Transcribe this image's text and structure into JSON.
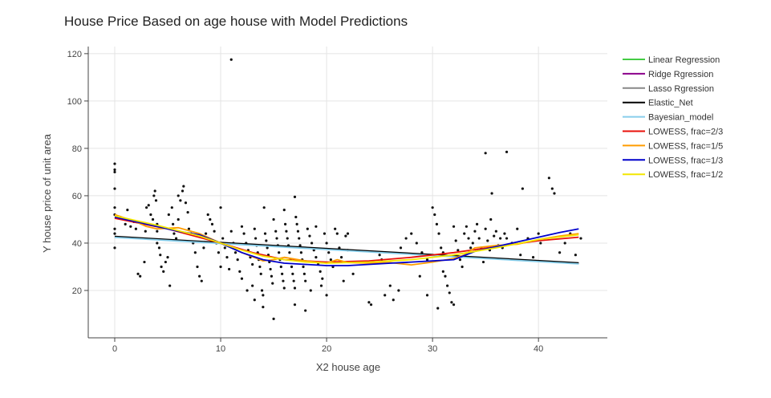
{
  "chart_data": {
    "type": "scatter",
    "title": "House Price Based on age house with Model Predictions",
    "xlabel": "X2 house age",
    "ylabel": "Y house price of unit area",
    "xlim": [
      -2.5,
      46.5
    ],
    "ylim": [
      0,
      123
    ],
    "xticks": [
      0,
      10,
      20,
      30,
      40
    ],
    "yticks": [
      20,
      40,
      60,
      80,
      100,
      120
    ],
    "grid": true,
    "legend_position": "right",
    "points": [
      [
        0,
        73.5
      ],
      [
        0,
        71
      ],
      [
        0,
        70
      ],
      [
        0,
        63
      ],
      [
        0,
        55
      ],
      [
        0,
        52
      ],
      [
        0,
        46
      ],
      [
        0,
        44
      ],
      [
        0,
        38
      ],
      [
        0.5,
        51
      ],
      [
        1,
        50
      ],
      [
        1,
        48
      ],
      [
        1.2,
        54
      ],
      [
        1.5,
        47
      ],
      [
        1.8,
        49
      ],
      [
        2,
        46
      ],
      [
        2.2,
        27
      ],
      [
        2.4,
        26
      ],
      [
        2.8,
        32
      ],
      [
        2.9,
        45
      ],
      [
        3,
        55
      ],
      [
        3.2,
        56
      ],
      [
        3.4,
        52
      ],
      [
        3.6,
        50
      ],
      [
        3.7,
        60
      ],
      [
        3.8,
        62
      ],
      [
        3.9,
        58
      ],
      [
        4,
        48
      ],
      [
        4,
        45
      ],
      [
        4,
        40
      ],
      [
        4.2,
        38
      ],
      [
        4.3,
        35
      ],
      [
        4.4,
        30
      ],
      [
        4.6,
        28
      ],
      [
        4.8,
        32
      ],
      [
        5,
        34
      ],
      [
        5.1,
        52
      ],
      [
        5.2,
        22
      ],
      [
        5.4,
        55
      ],
      [
        5.5,
        48
      ],
      [
        5.6,
        44
      ],
      [
        5.8,
        42
      ],
      [
        6,
        50
      ],
      [
        6,
        60
      ],
      [
        6.2,
        58
      ],
      [
        6.4,
        62
      ],
      [
        6.5,
        64
      ],
      [
        6.7,
        57
      ],
      [
        6.9,
        53
      ],
      [
        7,
        46
      ],
      [
        7.2,
        44
      ],
      [
        7.4,
        40
      ],
      [
        7.6,
        36
      ],
      [
        7.8,
        30
      ],
      [
        8,
        26
      ],
      [
        8.2,
        24
      ],
      [
        8.4,
        38
      ],
      [
        8.6,
        44
      ],
      [
        8.8,
        52
      ],
      [
        9,
        50
      ],
      [
        9.2,
        48
      ],
      [
        9.4,
        45
      ],
      [
        9.6,
        40
      ],
      [
        9.8,
        36
      ],
      [
        10,
        30
      ],
      [
        10,
        55
      ],
      [
        10.2,
        42
      ],
      [
        10.4,
        38
      ],
      [
        10.6,
        34
      ],
      [
        10.8,
        29
      ],
      [
        11,
        45
      ],
      [
        11,
        117.5
      ],
      [
        11.2,
        40
      ],
      [
        11.4,
        36
      ],
      [
        11.6,
        33
      ],
      [
        11.8,
        28
      ],
      [
        12,
        47
      ],
      [
        12,
        25
      ],
      [
        12.2,
        44
      ],
      [
        12.4,
        40
      ],
      [
        12.6,
        37
      ],
      [
        12.8,
        34
      ],
      [
        13,
        31
      ],
      [
        13,
        22
      ],
      [
        13.2,
        46
      ],
      [
        13.3,
        42
      ],
      [
        13.4,
        39
      ],
      [
        13.5,
        36
      ],
      [
        13.6,
        33
      ],
      [
        13.7,
        30
      ],
      [
        13.8,
        27
      ],
      [
        13.9,
        20
      ],
      [
        14,
        18
      ],
      [
        14,
        13
      ],
      [
        14.1,
        55
      ],
      [
        14.2,
        44
      ],
      [
        14.3,
        41
      ],
      [
        14.4,
        38
      ],
      [
        14.5,
        35
      ],
      [
        14.6,
        32
      ],
      [
        14.7,
        29
      ],
      [
        14.8,
        26
      ],
      [
        14.9,
        23
      ],
      [
        15,
        50
      ],
      [
        15,
        8
      ],
      [
        15.2,
        45
      ],
      [
        15.3,
        42
      ],
      [
        15.4,
        39
      ],
      [
        15.5,
        36
      ],
      [
        15.6,
        33
      ],
      [
        15.7,
        30
      ],
      [
        15.8,
        27
      ],
      [
        15.9,
        24
      ],
      [
        16,
        21
      ],
      [
        16,
        54
      ],
      [
        16.1,
        48
      ],
      [
        16.2,
        45
      ],
      [
        16.3,
        42
      ],
      [
        16.4,
        39
      ],
      [
        16.5,
        36
      ],
      [
        16.6,
        33
      ],
      [
        16.7,
        30
      ],
      [
        16.8,
        27
      ],
      [
        16.9,
        24
      ],
      [
        17,
        21
      ],
      [
        17,
        59.5
      ],
      [
        17,
        14
      ],
      [
        17.1,
        51
      ],
      [
        17.2,
        48
      ],
      [
        17.3,
        45
      ],
      [
        17.4,
        42
      ],
      [
        17.5,
        39
      ],
      [
        17.6,
        36
      ],
      [
        17.7,
        33
      ],
      [
        17.8,
        30
      ],
      [
        17.9,
        27
      ],
      [
        18,
        24
      ],
      [
        18,
        11.5
      ],
      [
        18.2,
        46
      ],
      [
        18.4,
        43
      ],
      [
        18.6,
        40
      ],
      [
        18.8,
        37
      ],
      [
        19,
        34
      ],
      [
        19,
        47
      ],
      [
        19.2,
        31
      ],
      [
        19.4,
        28
      ],
      [
        19.6,
        25
      ],
      [
        19.8,
        44
      ],
      [
        20,
        40
      ],
      [
        20.2,
        36
      ],
      [
        20.4,
        33
      ],
      [
        20.6,
        30
      ],
      [
        20.8,
        46
      ],
      [
        21,
        44
      ],
      [
        21.2,
        38
      ],
      [
        21.4,
        34
      ],
      [
        21.6,
        24
      ],
      [
        21.8,
        43
      ],
      [
        22,
        44
      ],
      [
        22,
        37
      ],
      [
        24,
        15
      ],
      [
        24.2,
        14
      ],
      [
        25,
        35
      ],
      [
        25.2,
        33
      ],
      [
        25.5,
        18
      ],
      [
        26,
        22
      ],
      [
        26.3,
        16
      ],
      [
        26.8,
        20
      ],
      [
        27,
        38
      ],
      [
        27.5,
        42
      ],
      [
        28,
        44
      ],
      [
        28.5,
        40
      ],
      [
        29,
        36
      ],
      [
        29.5,
        33
      ],
      [
        30,
        55
      ],
      [
        30.2,
        52
      ],
      [
        30.4,
        48
      ],
      [
        30.6,
        44
      ],
      [
        30.8,
        38
      ],
      [
        31,
        28
      ],
      [
        31,
        36
      ],
      [
        31.2,
        26
      ],
      [
        31.4,
        22
      ],
      [
        31.6,
        19
      ],
      [
        31.8,
        15
      ],
      [
        32,
        14
      ],
      [
        32,
        47
      ],
      [
        32.2,
        41
      ],
      [
        32.4,
        37
      ],
      [
        32.6,
        33
      ],
      [
        32.8,
        30
      ],
      [
        33,
        44
      ],
      [
        33.2,
        47
      ],
      [
        33.4,
        42
      ],
      [
        33.6,
        38
      ],
      [
        33.8,
        40
      ],
      [
        34,
        45
      ],
      [
        34.2,
        48
      ],
      [
        34.4,
        42
      ],
      [
        34.6,
        38
      ],
      [
        34.8,
        32
      ],
      [
        35,
        46
      ],
      [
        35,
        78
      ],
      [
        35.2,
        41
      ],
      [
        35.4,
        37
      ],
      [
        35.5,
        50
      ],
      [
        35.6,
        61
      ],
      [
        35.8,
        43
      ],
      [
        36,
        45
      ],
      [
        36.2,
        39
      ],
      [
        36.4,
        42
      ],
      [
        36.6,
        38
      ],
      [
        36.8,
        44
      ],
      [
        37,
        78.5
      ],
      [
        37,
        42
      ],
      [
        37.5,
        40
      ],
      [
        38,
        46
      ],
      [
        38.3,
        35
      ],
      [
        38.5,
        63
      ],
      [
        39,
        42
      ],
      [
        39.5,
        34
      ],
      [
        40,
        44
      ],
      [
        40.2,
        40
      ],
      [
        41,
        67.5
      ],
      [
        41.3,
        63
      ],
      [
        41.5,
        61
      ],
      [
        42,
        36
      ],
      [
        42.5,
        40
      ],
      [
        43,
        44
      ],
      [
        43.5,
        35
      ],
      [
        44,
        42
      ],
      [
        30.5,
        12.5
      ],
      [
        29.5,
        18
      ],
      [
        28.8,
        26
      ],
      [
        22.5,
        27
      ],
      [
        18.5,
        20
      ],
      [
        19.5,
        22
      ],
      [
        20,
        18
      ],
      [
        12.5,
        20
      ],
      [
        13.2,
        16
      ]
    ],
    "series": [
      {
        "name": "Linear Regression",
        "color": "#44cc44",
        "x": [
          0,
          43.8
        ],
        "y": [
          42.6,
          31.4
        ]
      },
      {
        "name": "Ridge Rgression",
        "color": "#8b008b",
        "x": [
          0,
          43.8
        ],
        "y": [
          42.6,
          31.4
        ]
      },
      {
        "name": "Lasso Rgression",
        "color": "#888888",
        "x": [
          0,
          43.8
        ],
        "y": [
          42.6,
          31.4
        ]
      },
      {
        "name": "Elastic_Net",
        "color": "#000000",
        "x": [
          0,
          43.8
        ],
        "y": [
          42.8,
          31.6
        ]
      },
      {
        "name": "Bayesian_model",
        "color": "#87ceeb",
        "x": [
          0,
          43.8
        ],
        "y": [
          42.4,
          31.2
        ]
      },
      {
        "name": "LOWESS, frac=2/3",
        "color": "#e8100a",
        "x": [
          0,
          5,
          10,
          13,
          16,
          20,
          24,
          28,
          32,
          36,
          40,
          43.8
        ],
        "y": [
          50.5,
          46,
          40,
          36,
          33,
          32,
          32.5,
          34,
          36,
          38.5,
          41,
          42.5
        ]
      },
      {
        "name": "LOWESS, frac=1/5",
        "color": "#ff9c00",
        "x": [
          0,
          2,
          3,
          4,
          6,
          8,
          10,
          12,
          14,
          15,
          16,
          18,
          20,
          21,
          22,
          24,
          26,
          28,
          30,
          32,
          33,
          34,
          36,
          38,
          40,
          42,
          43.8
        ],
        "y": [
          52,
          49,
          47,
          46,
          46.5,
          44,
          40,
          36,
          32.5,
          33,
          34,
          32.5,
          31.5,
          33,
          31.8,
          31.5,
          31.8,
          30.8,
          32,
          33.5,
          35,
          38,
          39,
          39.5,
          41.5,
          43,
          44
        ]
      },
      {
        "name": "LOWESS, frac=1/3",
        "color": "#0000cc",
        "x": [
          0,
          3,
          6,
          8,
          10,
          12,
          14,
          16,
          18,
          20,
          22,
          24,
          26,
          28,
          30,
          32,
          34,
          36,
          38,
          40,
          42,
          43.8
        ],
        "y": [
          51,
          48,
          45,
          43.5,
          40,
          36,
          33,
          31.5,
          31,
          30.5,
          30.5,
          31,
          31.5,
          32,
          32.5,
          33,
          36.5,
          38.5,
          40.5,
          42.5,
          44.5,
          46
        ]
      },
      {
        "name": "LOWESS, frac=1/2",
        "color": "#f2e600",
        "x": [
          0,
          4,
          8,
          10,
          12,
          14,
          16,
          18,
          20,
          24,
          28,
          32,
          36,
          40,
          43.8
        ],
        "y": [
          51.5,
          47.5,
          43,
          40,
          37,
          34.5,
          33,
          32,
          31.5,
          32,
          33,
          35,
          38,
          41.5,
          43.5
        ]
      }
    ]
  }
}
